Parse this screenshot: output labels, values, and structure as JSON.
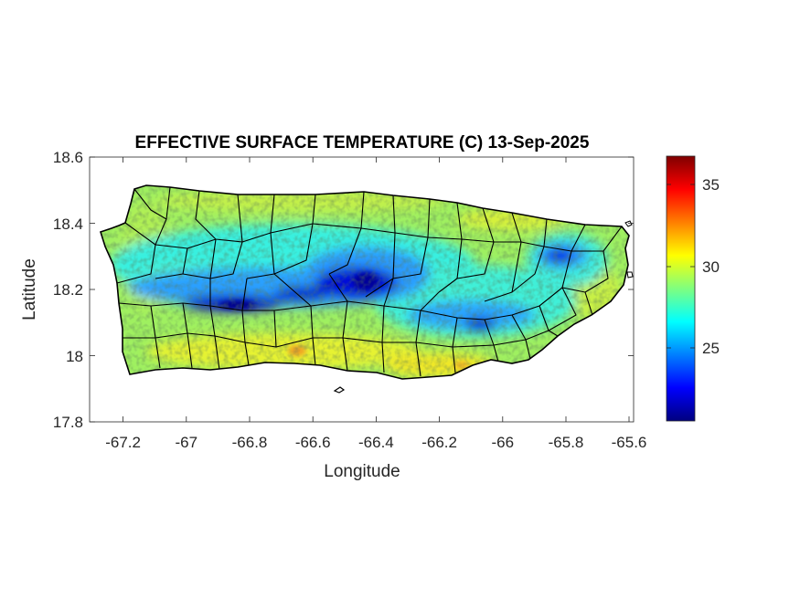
{
  "map": {
    "title": "EFFECTIVE SURFACE TEMPERATURE (C) 13-Sep-2025",
    "xlabel": "Longitude",
    "ylabel": "Latitude",
    "x_range": [
      -67.3,
      -65.58
    ],
    "y_range": [
      17.8,
      18.6
    ],
    "x_ticks": [
      "-67.2",
      "-67",
      "-66.8",
      "-66.6",
      "-66.4",
      "-66.2",
      "-66",
      "-65.8",
      "-65.6"
    ],
    "y_ticks": [
      "18.6",
      "18.4",
      "18.2",
      "18",
      "17.8"
    ],
    "region": "Puerto Rico municipalities",
    "colormap": "jet",
    "background": "#ffffff"
  },
  "colorbar": {
    "range": [
      20.5,
      36.8
    ],
    "ticks": [
      "35",
      "30",
      "25"
    ],
    "colors": [
      "#00007f",
      "#0000ff",
      "#007fff",
      "#00ffff",
      "#7fff7f",
      "#ffff00",
      "#ff7f00",
      "#ff0000",
      "#7f0000"
    ]
  }
}
